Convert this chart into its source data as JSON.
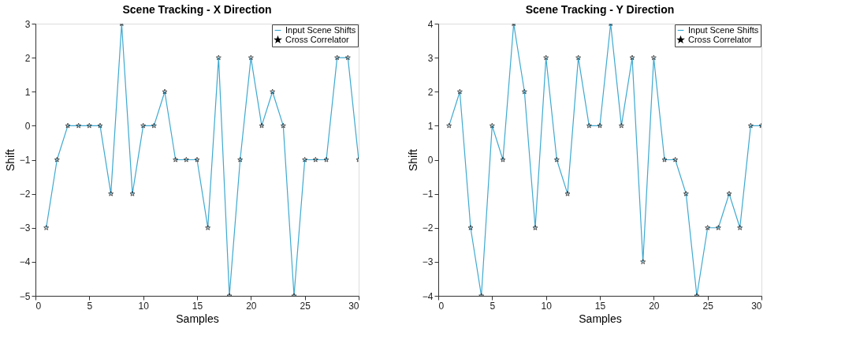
{
  "chart_data": [
    {
      "type": "line",
      "title": "Scene Tracking - X Direction",
      "xlabel": "Samples",
      "ylabel": "Shift",
      "x": [
        1,
        2,
        3,
        4,
        5,
        6,
        7,
        8,
        9,
        10,
        11,
        12,
        13,
        14,
        15,
        16,
        17,
        18,
        19,
        20,
        21,
        22,
        23,
        24,
        25,
        26,
        27,
        28,
        29,
        30
      ],
      "xlim": [
        0,
        30
      ],
      "xticks": [
        0,
        5,
        10,
        15,
        20,
        25,
        30
      ],
      "ylim": [
        -5,
        3
      ],
      "yticks": [
        -5,
        -4,
        -3,
        -2,
        -1,
        0,
        1,
        2,
        3
      ],
      "grid": false,
      "legend": "top right",
      "series": [
        {
          "name": "Input Scene Shifts",
          "marker": "none",
          "color": "#3fa9d0",
          "values": [
            -3,
            -1,
            0,
            0,
            0,
            0,
            -2,
            3,
            -2,
            0,
            0,
            1,
            -1,
            -1,
            -1,
            -3,
            2,
            -5,
            -1,
            2,
            0,
            1,
            0,
            -5,
            -1,
            -1,
            -1,
            2,
            2,
            -1
          ]
        },
        {
          "name": "Cross Correlator",
          "type": "scatter",
          "marker": "star",
          "color": "#000000",
          "values": [
            -3,
            -1,
            0,
            0,
            0,
            0,
            -2,
            3,
            -2,
            0,
            0,
            1,
            -1,
            -1,
            -1,
            -3,
            2,
            -5,
            -1,
            2,
            0,
            1,
            0,
            -5,
            -1,
            -1,
            -1,
            2,
            2,
            -1
          ]
        }
      ]
    },
    {
      "type": "line",
      "title": "Scene Tracking - Y Direction",
      "xlabel": "Samples",
      "ylabel": "Shift",
      "x": [
        1,
        2,
        3,
        4,
        5,
        6,
        7,
        8,
        9,
        10,
        11,
        12,
        13,
        14,
        15,
        16,
        17,
        18,
        19,
        20,
        21,
        22,
        23,
        24,
        25,
        26,
        27,
        28,
        29,
        30
      ],
      "xlim": [
        0,
        30
      ],
      "xticks": [
        0,
        5,
        10,
        15,
        20,
        25,
        30
      ],
      "ylim": [
        -4,
        4
      ],
      "yticks": [
        -4,
        -3,
        -2,
        -1,
        0,
        1,
        2,
        3,
        4
      ],
      "grid": false,
      "legend": "top right",
      "series": [
        {
          "name": "Input Scene Shifts",
          "marker": "none",
          "color": "#3fa9d0",
          "values": [
            1,
            2,
            -2,
            -4,
            1,
            0,
            4,
            2,
            -2,
            3,
            0,
            -1,
            3,
            1,
            1,
            4,
            1,
            3,
            -3,
            3,
            0,
            0,
            -1,
            -4,
            -2,
            -2,
            -1,
            -2,
            1,
            1
          ]
        },
        {
          "name": "Cross Correlator",
          "type": "scatter",
          "marker": "star",
          "color": "#000000",
          "values": [
            1,
            2,
            -2,
            -4,
            1,
            0,
            4,
            2,
            -2,
            3,
            0,
            -1,
            3,
            1,
            1,
            4,
            1,
            3,
            -3,
            3,
            0,
            0,
            -1,
            -4,
            -2,
            -2,
            -1,
            -2,
            1,
            1
          ]
        }
      ]
    }
  ]
}
